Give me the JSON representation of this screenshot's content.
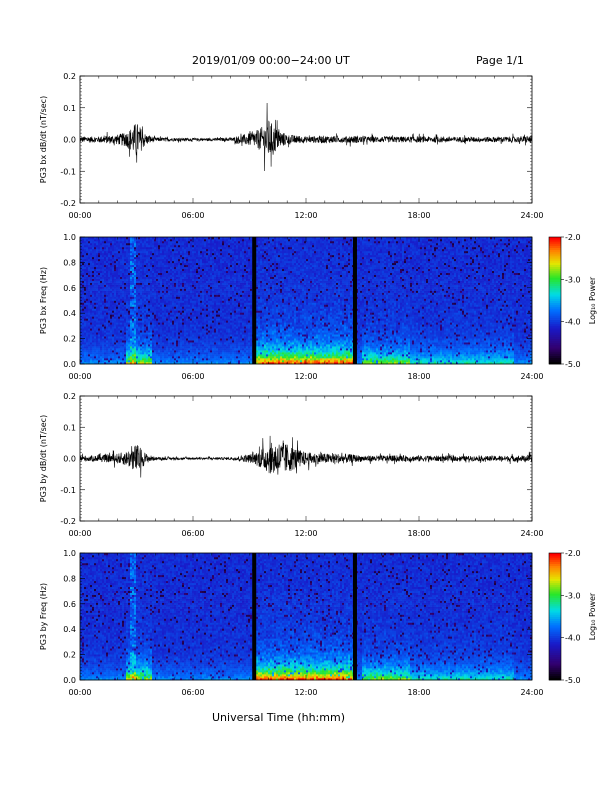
{
  "header": {
    "title": "2019/01/09   00:00−24:00 UT",
    "page": "Page 1/1"
  },
  "footer": {
    "xlabel": "Universal Time (hh:mm)"
  },
  "colorbar": {
    "label": "Log₁₀ Power",
    "ticks": [
      "-2.0",
      "-3.0",
      "-4.0",
      "-5.0"
    ]
  },
  "data_gaps_hours": [
    9.25,
    14.6
  ],
  "chart_data": [
    {
      "type": "line",
      "ylabel": "PG3 bx dB/dt (nT/sec)",
      "xlim": [
        0,
        24
      ],
      "ylim": [
        -0.2,
        0.2
      ],
      "xticks": [
        "00:00",
        "06:00",
        "12:00",
        "18:00",
        "24:00"
      ],
      "yticks": [
        "0.2",
        "0.1",
        "0.0",
        "-0.1",
        "-0.2"
      ],
      "x_hours": [
        0,
        1,
        2,
        2.5,
        3,
        3.5,
        4,
        6,
        8,
        9.25,
        9.6,
        10,
        10.5,
        11,
        12,
        13,
        14,
        14.6,
        15,
        18,
        21,
        23.5,
        24
      ],
      "amplitude": [
        0.012,
        0.012,
        0.02,
        0.03,
        0.07,
        0.02,
        0.008,
        0.005,
        0.006,
        0.03,
        0.045,
        0.08,
        0.04,
        0.02,
        0.012,
        0.015,
        0.012,
        0.015,
        0.012,
        0.012,
        0.01,
        0.012,
        0.015
      ]
    },
    {
      "type": "heatmap",
      "ylabel": "PG3 bx Freq (Hz)",
      "xlim": [
        0,
        24
      ],
      "ylim": [
        0,
        1.0
      ],
      "xticks": [
        "00:00",
        "06:00",
        "12:00",
        "18:00",
        "24:00"
      ],
      "yticks": [
        "1.0",
        "0.8",
        "0.6",
        "0.4",
        "0.2",
        "0.0"
      ],
      "zlim": [
        -5.0,
        -2.0
      ],
      "z_label": "Log₁₀ Power"
    },
    {
      "type": "line",
      "ylabel": "PG3 by dB/dt (nT/sec)",
      "xlim": [
        0,
        24
      ],
      "ylim": [
        -0.2,
        0.2
      ],
      "xticks": [
        "00:00",
        "06:00",
        "12:00",
        "18:00",
        "24:00"
      ],
      "yticks": [
        "0.2",
        "0.1",
        "0.0",
        "-0.1",
        "-0.2"
      ],
      "x_hours": [
        0,
        1,
        2,
        2.5,
        3,
        3.5,
        4,
        6,
        8,
        9.25,
        9.6,
        10,
        10.5,
        11,
        11.5,
        12,
        13,
        14,
        14.6,
        15,
        18,
        21,
        23.5,
        24
      ],
      "amplitude": [
        0.012,
        0.012,
        0.02,
        0.03,
        0.06,
        0.02,
        0.006,
        0.004,
        0.005,
        0.02,
        0.04,
        0.06,
        0.07,
        0.06,
        0.04,
        0.025,
        0.02,
        0.02,
        0.015,
        0.012,
        0.012,
        0.01,
        0.012,
        0.015
      ]
    },
    {
      "type": "heatmap",
      "ylabel": "PG3 by Freq (Hz)",
      "xlim": [
        0,
        24
      ],
      "ylim": [
        0,
        1.0
      ],
      "xticks": [
        "00:00",
        "06:00",
        "12:00",
        "18:00",
        "24:00"
      ],
      "yticks": [
        "1.0",
        "0.8",
        "0.6",
        "0.4",
        "0.2",
        "0.0"
      ],
      "zlim": [
        -5.0,
        -2.0
      ],
      "z_label": "Log₁₀ Power"
    }
  ]
}
